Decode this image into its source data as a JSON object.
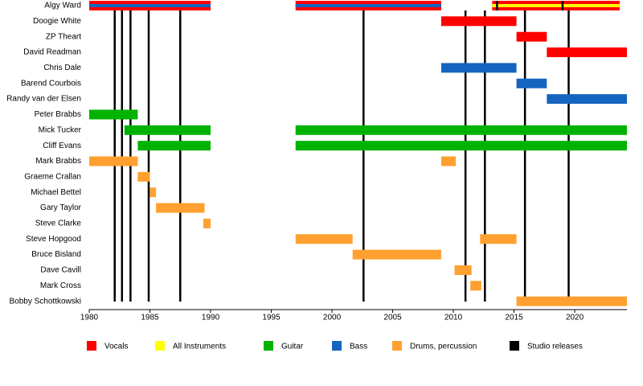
{
  "chart_data": {
    "type": "timeline",
    "xlim": [
      1980,
      2024.3
    ],
    "xticks": [
      1980,
      1985,
      1990,
      1995,
      2000,
      2005,
      2010,
      2015,
      2020
    ],
    "rows": [
      {
        "name": "Algy Ward",
        "bars": [
          {
            "start": 1980,
            "end": 1990,
            "color": "#ff0000",
            "stripe": "#1565c0"
          },
          {
            "start": 1997,
            "end": 2009,
            "color": "#ff0000",
            "stripe": "#1565c0"
          },
          {
            "start": 2013.2,
            "end": 2023.7,
            "color": "#ff0000",
            "stripe": "#ffff00"
          }
        ],
        "releases": [
          2013.6,
          2019.0
        ]
      },
      {
        "name": "Doogie White",
        "bars": [
          {
            "start": 2009,
            "end": 2015.2,
            "color": "#ff0000"
          }
        ]
      },
      {
        "name": "ZP Theart",
        "bars": [
          {
            "start": 2015.2,
            "end": 2017.7,
            "color": "#ff0000"
          }
        ]
      },
      {
        "name": "David Readman",
        "bars": [
          {
            "start": 2017.7,
            "end": 2024.3,
            "color": "#ff0000"
          }
        ]
      },
      {
        "name": "Chris Dale",
        "bars": [
          {
            "start": 2009,
            "end": 2015.2,
            "color": "#1565c0"
          }
        ]
      },
      {
        "name": "Barend Courbois",
        "bars": [
          {
            "start": 2015.2,
            "end": 2017.7,
            "color": "#1565c0"
          }
        ]
      },
      {
        "name": "Randy van der Elsen",
        "bars": [
          {
            "start": 2017.7,
            "end": 2024.3,
            "color": "#1565c0"
          }
        ]
      },
      {
        "name": "Peter Brabbs",
        "bars": [
          {
            "start": 1980,
            "end": 1984,
            "color": "#00b300"
          }
        ]
      },
      {
        "name": "Mick Tucker",
        "bars": [
          {
            "start": 1982.9,
            "end": 1990,
            "color": "#00b300"
          },
          {
            "start": 1997,
            "end": 2024.3,
            "color": "#00b300"
          }
        ]
      },
      {
        "name": "Cliff Evans",
        "bars": [
          {
            "start": 1984,
            "end": 1990,
            "color": "#00b300"
          },
          {
            "start": 1997,
            "end": 2024.3,
            "color": "#00b300"
          }
        ]
      },
      {
        "name": "Mark Brabbs",
        "bars": [
          {
            "start": 1980,
            "end": 1984,
            "color": "#ffa030"
          },
          {
            "start": 2009,
            "end": 2010.2,
            "color": "#ffa030"
          }
        ]
      },
      {
        "name": "Graeme Crallan",
        "bars": [
          {
            "start": 1984,
            "end": 1985,
            "color": "#ffa030"
          }
        ]
      },
      {
        "name": "Michael Bettel",
        "bars": [
          {
            "start": 1985,
            "end": 1985.5,
            "color": "#ffa030"
          }
        ]
      },
      {
        "name": "Gary Taylor",
        "bars": [
          {
            "start": 1985.5,
            "end": 1989.5,
            "color": "#ffa030"
          }
        ]
      },
      {
        "name": "Steve Clarke",
        "bars": [
          {
            "start": 1989.4,
            "end": 1990,
            "color": "#ffa030"
          }
        ]
      },
      {
        "name": "Steve Hopgood",
        "bars": [
          {
            "start": 1997,
            "end": 2001.7,
            "color": "#ffa030"
          },
          {
            "start": 2012.2,
            "end": 2015.2,
            "color": "#ffa030"
          }
        ]
      },
      {
        "name": "Bruce Bisland",
        "bars": [
          {
            "start": 2001.7,
            "end": 2009,
            "color": "#ffa030"
          }
        ]
      },
      {
        "name": "Dave Cavill",
        "bars": [
          {
            "start": 2010.1,
            "end": 2011.5,
            "color": "#ffa030"
          }
        ]
      },
      {
        "name": "Mark Cross",
        "bars": [
          {
            "start": 2011.4,
            "end": 2012.3,
            "color": "#ffa030"
          }
        ]
      },
      {
        "name": "Bobby Schottkowski",
        "bars": [
          {
            "start": 2015.2,
            "end": 2024.3,
            "color": "#ffa030"
          }
        ]
      }
    ],
    "releases": [
      1982.1,
      1982.7,
      1983.4,
      1984.9,
      1987.5,
      2002.6,
      2011.0,
      2012.6,
      2015.9,
      2019.5
    ],
    "release_color": "#000000",
    "legend": [
      {
        "name": "Vocals",
        "color": "#ff0000"
      },
      {
        "name": "All Instruments",
        "color": "#ffff00"
      },
      {
        "name": "Guitar",
        "color": "#00b300"
      },
      {
        "name": "Bass",
        "color": "#1565c0"
      },
      {
        "name": "Drums, percussion",
        "color": "#ffa030"
      },
      {
        "name": "Studio releases",
        "color": "#000000"
      }
    ]
  }
}
